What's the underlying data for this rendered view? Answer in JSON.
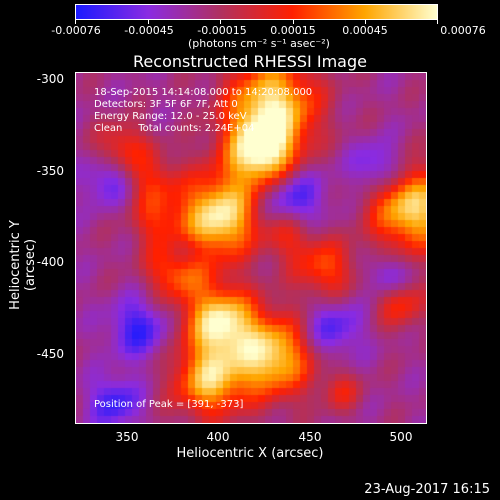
{
  "colorbar": {
    "tick_labels": [
      "-0.00076",
      "-0.00045",
      "-0.00015",
      "0.00015",
      "0.00045",
      "0.00076"
    ],
    "units": "(photons cm⁻² s⁻¹ asec⁻²)",
    "colors": [
      "#1a1aff",
      "#8a2be2",
      "#b03060",
      "#ff2000",
      "#ffa500",
      "#ffffd0"
    ]
  },
  "title": "Reconstructed RHESSI Image",
  "annotations": {
    "time_range": "18-Sep-2015 14:14:08.000 to 14:20:08.000",
    "detectors": "Detectors: 3F 5F 6F 7F, Att 0",
    "energy": "Energy Range: 12.0 - 25.0 keV",
    "clean": "Clean     Total counts: 2.24E+04",
    "peak": "Position of Peak = [391, -373]"
  },
  "axes": {
    "xlabel": "Heliocentric X (arcsec)",
    "ylabel": "Heliocentric Y (arcsec)",
    "xticks": [
      "350",
      "400",
      "450",
      "500"
    ],
    "yticks": [
      "-300",
      "-350",
      "-400",
      "-450"
    ]
  },
  "footer_date": "23-Aug-2017 16:15"
}
